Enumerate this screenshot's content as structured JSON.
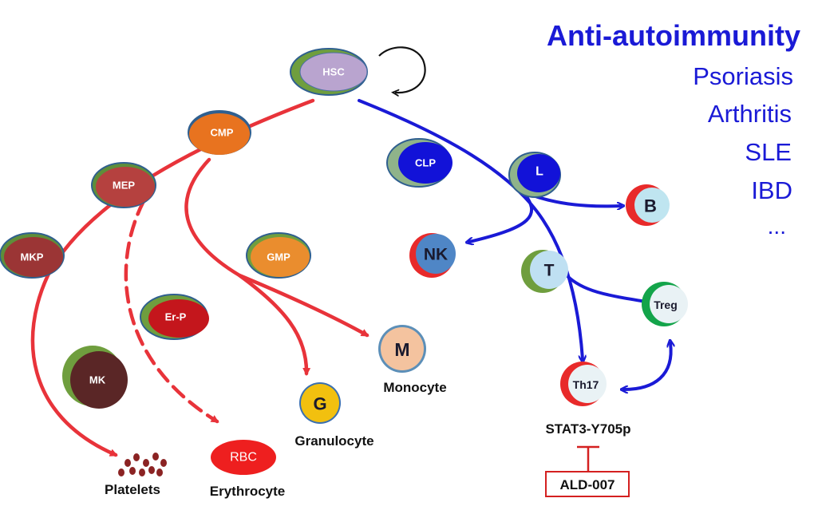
{
  "side_panel": {
    "title": "Anti-autoimmunity",
    "items": [
      "Psoriasis",
      "Arthritis",
      "SLE",
      "IBD",
      "..."
    ]
  },
  "cells": {
    "hsc": "HSC",
    "cmp": "CMP",
    "mep": "MEP",
    "mkp": "MKP",
    "gmp": "GMP",
    "erp": "Er-P",
    "mk": "MK",
    "m": "M",
    "g": "G",
    "rbc": "RBC",
    "clp": "CLP",
    "l": "L",
    "b": "B",
    "nk": "NK",
    "t": "T",
    "treg": "Treg",
    "th17": "Th17"
  },
  "captions": {
    "platelets": "Platelets",
    "erythrocyte": "Erythrocyte",
    "granulocyte": "Granulocyte",
    "monocyte": "Monocyte",
    "stat3": "STAT3-Y705p",
    "inhibitor": "ALD-007"
  },
  "colors": {
    "myeloid_arrow": "#e8333a",
    "lymphoid_arrow": "#1a1ad6",
    "inhibitor": "#d42020"
  }
}
